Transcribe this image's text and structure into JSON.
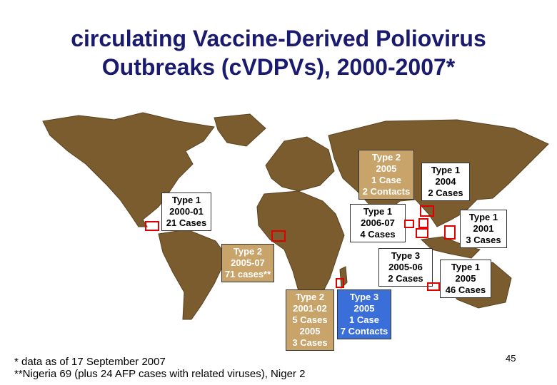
{
  "title_line1": "circulating Vaccine-Derived Poliovirus",
  "title_line2": "Outbreaks (cVDPVs), 2000-2007*",
  "colors": {
    "land": "#7a5c2e",
    "tan_label": "#c8a36a",
    "blue_label": "#3a6fd9",
    "marker": "#e00000"
  },
  "labels": [
    {
      "id": "hispaniola",
      "lines": [
        "Type 1",
        "2000-01",
        "21 Cases"
      ]
    },
    {
      "id": "nigeria",
      "lines": [
        "Type 2",
        "2005-07",
        "71 cases**"
      ]
    },
    {
      "id": "madagascar",
      "lines": [
        "Type 2",
        "2001-02",
        "5 Cases",
        "2005",
        "3 Cases"
      ]
    },
    {
      "id": "cambodia",
      "lines": [
        "Type 3",
        "2005",
        "1 Case",
        "7 Contacts"
      ]
    },
    {
      "id": "myanmar-contacts",
      "lines": [
        "Type 2",
        "2005",
        "1 Case",
        "2 Contacts"
      ]
    },
    {
      "id": "china",
      "lines": [
        "Type 1",
        "2004",
        "2 Cases"
      ]
    },
    {
      "id": "myanmar-type1",
      "lines": [
        "Type 1",
        "2006-07",
        "4 Cases"
      ]
    },
    {
      "id": "philippines",
      "lines": [
        "Type 1",
        "2001",
        "3 Cases"
      ]
    },
    {
      "id": "myanmar-type3",
      "lines": [
        "Type 3",
        "2005-06",
        "2 Cases"
      ]
    },
    {
      "id": "indonesia",
      "lines": [
        "Type 1",
        "2005",
        "46 Cases"
      ]
    }
  ],
  "footnote1": "* data as of 17 September 2007",
  "footnote2": "**Nigeria 69 (plus 24 AFP cases with related viruses), Niger 2",
  "page_number": "45"
}
